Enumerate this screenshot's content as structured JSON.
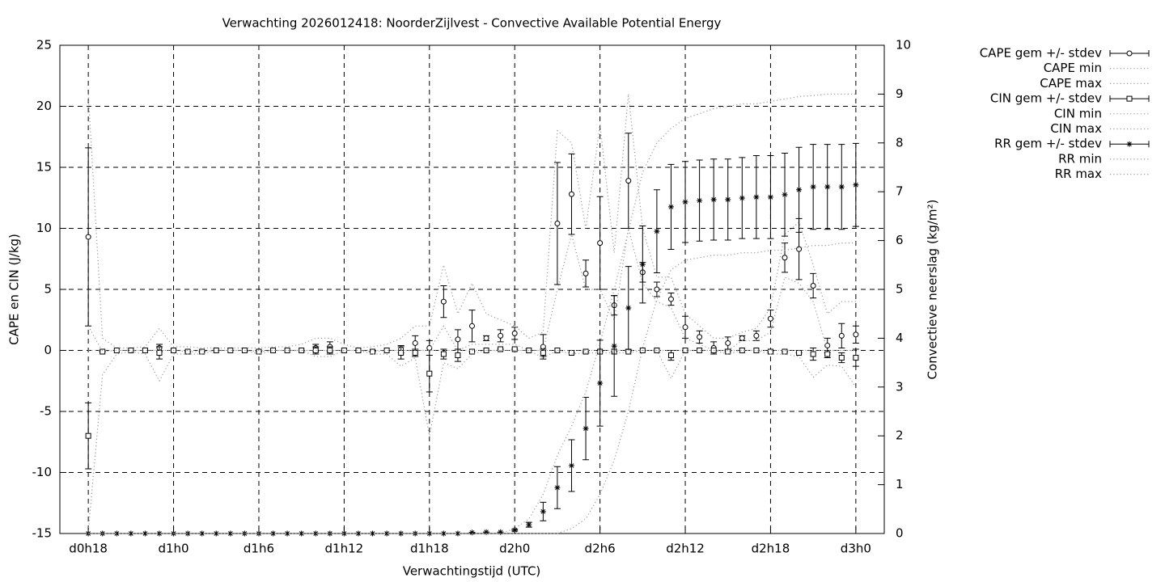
{
  "chart_data": {
    "type": "errorbar",
    "title": "Verwachting 2026012418: NoorderZijlvest - Convective Available Potential Energy",
    "x_label": "Verwachtingstijd (UTC)",
    "y_label": "CAPE en CIN (J/kg)",
    "y2_label": "Convectieve neerslag (kg/m²)",
    "x": [
      18,
      19,
      20,
      21,
      22,
      23,
      24,
      25,
      26,
      27,
      28,
      29,
      30,
      31,
      32,
      33,
      34,
      35,
      36,
      37,
      38,
      39,
      40,
      41,
      42,
      43,
      44,
      45,
      46,
      47,
      48,
      49,
      50,
      51,
      52,
      53,
      54,
      55,
      56,
      57,
      58,
      59,
      60,
      61,
      62,
      63,
      64,
      65,
      66,
      67,
      68,
      69,
      70,
      71,
      72
    ],
    "xlim": [
      16,
      74
    ],
    "xticks": [
      {
        "value": 18,
        "label": "d0h18"
      },
      {
        "value": 24,
        "label": "d1h0"
      },
      {
        "value": 30,
        "label": "d1h6"
      },
      {
        "value": 36,
        "label": "d1h12"
      },
      {
        "value": 42,
        "label": "d1h18"
      },
      {
        "value": 48,
        "label": "d2h0"
      },
      {
        "value": 54,
        "label": "d2h6"
      },
      {
        "value": 60,
        "label": "d2h12"
      },
      {
        "value": 66,
        "label": "d2h18"
      },
      {
        "value": 72,
        "label": "d3h0"
      }
    ],
    "ylim": [
      -15,
      25
    ],
    "yticks": [
      -15,
      -10,
      -5,
      0,
      5,
      10,
      15,
      20,
      25
    ],
    "y2lim": [
      0,
      10
    ],
    "y2ticks": [
      0,
      1,
      2,
      3,
      4,
      5,
      6,
      7,
      8,
      9,
      10
    ],
    "grid": true,
    "legend": "outside right",
    "series": [
      {
        "name": "CAPE gem +/- stdev",
        "color": "#000000",
        "style": "errorbars",
        "marker": "circle",
        "values": [
          9.3,
          -0.1,
          0,
          0,
          0,
          0.2,
          0,
          -0.1,
          -0.1,
          0,
          0,
          0,
          -0.1,
          0,
          0,
          0,
          0.2,
          0.3,
          0,
          0,
          -0.1,
          0,
          0.1,
          0.6,
          0.2,
          4.0,
          0.9,
          2.0,
          1.0,
          1.2,
          1.4,
          0,
          0.3,
          10.4,
          12.8,
          6.3,
          8.8,
          3.7,
          13.9,
          6.4,
          5.0,
          4.2,
          1.9,
          1.1,
          0.2,
          0.6,
          1.0,
          1.2,
          2.6,
          7.6,
          8.3,
          5.3,
          0.4,
          1.2,
          1.3
        ],
        "errors": [
          7.3,
          0,
          0,
          0,
          0,
          0.3,
          0,
          0,
          0,
          0,
          0,
          0,
          0,
          0,
          0,
          0,
          0.3,
          0.4,
          0,
          0,
          0,
          0,
          0.3,
          0.6,
          0.6,
          1.3,
          0.8,
          1.3,
          0.2,
          0.5,
          0.5,
          0,
          1.0,
          5.0,
          3.3,
          1.1,
          3.8,
          0.8,
          3.9,
          0.8,
          0.6,
          0.5,
          0.9,
          0.5,
          0.5,
          0.5,
          0.2,
          0.4,
          0.7,
          1.2,
          2.5,
          1.0,
          0.6,
          1.0,
          0.7
        ]
      },
      {
        "name": "CAPE min",
        "color": "#999999",
        "style": "dotted",
        "values": [
          2.0,
          -0.1,
          0,
          0,
          0,
          0,
          0,
          -0.1,
          -0.1,
          0,
          0,
          0,
          -0.1,
          0,
          0,
          0,
          0,
          0,
          0,
          0,
          -0.1,
          0,
          0,
          0,
          0,
          2.0,
          0,
          0.5,
          0.5,
          0.5,
          0.5,
          0,
          0,
          5.0,
          9.5,
          5.0,
          5.0,
          2.5,
          10.0,
          5.5,
          4.0,
          3.5,
          1.0,
          0.5,
          0,
          0,
          0.8,
          0.8,
          1.5,
          6.0,
          5.5,
          4.0,
          0,
          0,
          0
        ]
      },
      {
        "name": "CAPE max",
        "color": "#999999",
        "style": "dotted",
        "values": [
          21,
          1.0,
          0.2,
          0.2,
          0.3,
          1.8,
          0.3,
          0.3,
          0.2,
          0.2,
          0.2,
          0.2,
          0.2,
          0.3,
          0.3,
          0.5,
          1.0,
          1.0,
          0.5,
          0.2,
          0.3,
          0.5,
          1.0,
          2.0,
          2.0,
          7.0,
          3.0,
          5.5,
          3.0,
          2.5,
          2.0,
          1.0,
          1.5,
          18,
          17,
          10,
          18.5,
          8,
          21,
          10,
          6,
          6,
          3,
          2,
          1,
          1,
          1.5,
          1.8,
          3.5,
          9.5,
          10.5,
          7,
          3,
          4,
          4
        ]
      },
      {
        "name": "CIN gem +/- stdev",
        "color": "#000000",
        "style": "errorbars",
        "marker": "square",
        "values": [
          -7.0,
          -0.1,
          0,
          0,
          0,
          -0.2,
          0,
          -0.1,
          -0.1,
          0,
          0,
          0,
          -0.1,
          0,
          0,
          0,
          0,
          0,
          0,
          0,
          -0.1,
          0,
          -0.2,
          -0.2,
          -1.9,
          -0.3,
          -0.4,
          -0.1,
          0,
          0.1,
          0.1,
          0,
          -0.2,
          0,
          -0.2,
          -0.1,
          -0.1,
          -0.1,
          -0.1,
          0,
          0,
          -0.4,
          0,
          0,
          0,
          -0.1,
          0,
          0,
          -0.1,
          -0.1,
          -0.2,
          -0.3,
          -0.3,
          -0.6,
          -0.6
        ],
        "errors": [
          2.7,
          0,
          0,
          0,
          0,
          0.5,
          0,
          0,
          0,
          0,
          0,
          0,
          0,
          0,
          0,
          0,
          0.3,
          0.3,
          0,
          0,
          0,
          0,
          0.5,
          0.3,
          1.5,
          0.4,
          0.5,
          0,
          0,
          0,
          0,
          0,
          0.3,
          0,
          0,
          0,
          0,
          0,
          0,
          0,
          0,
          0.4,
          0,
          0,
          0,
          0,
          0,
          0,
          0,
          0,
          0,
          0.5,
          0.3,
          0.4,
          0.7
        ]
      },
      {
        "name": "CIN min",
        "color": "#999999",
        "style": "dotted",
        "values": [
          -14.8,
          -2.0,
          -0.3,
          -0.1,
          -0.3,
          -2.5,
          -0.3,
          -0.3,
          -0.3,
          0,
          0,
          0,
          -0.3,
          0,
          0,
          0,
          -0.5,
          -0.5,
          0,
          0,
          -0.3,
          -0.3,
          -1.3,
          -0.6,
          -7.0,
          -1.0,
          -1.5,
          -0.3,
          0,
          0,
          0,
          0,
          -0.6,
          0,
          -0.3,
          -0.2,
          -0.2,
          -0.2,
          -0.2,
          0,
          0,
          -2.3,
          0,
          0,
          0,
          -0.3,
          0,
          0,
          -0.3,
          -0.3,
          -0.5,
          -2.2,
          -1.2,
          -1.3,
          -3.0
        ]
      },
      {
        "name": "CIN max",
        "color": "#999999",
        "style": "dotted",
        "values": [
          0,
          0,
          0,
          0,
          0,
          0,
          0,
          0,
          0,
          0,
          0,
          0,
          0,
          0,
          0,
          0,
          0,
          0,
          0,
          0,
          0,
          0,
          0,
          0,
          0,
          0,
          0,
          0,
          0,
          0,
          0,
          0,
          0,
          0,
          0,
          0,
          0,
          0,
          0,
          0,
          0,
          0,
          0,
          0,
          0,
          0,
          0,
          0,
          0,
          0,
          0,
          0,
          0,
          0,
          0
        ]
      },
      {
        "name": "RR gem +/- stdev",
        "color": "#000000",
        "style": "errorbars",
        "marker": "star",
        "axis": "y2",
        "values": [
          0,
          0,
          0,
          0,
          0,
          0,
          0,
          0,
          0,
          0,
          0,
          0,
          0,
          0,
          0,
          0,
          0,
          0,
          0,
          0,
          0,
          0,
          0,
          0,
          0,
          0,
          0,
          0.02,
          0.03,
          0.03,
          0.07,
          0.18,
          0.45,
          0.94,
          1.39,
          2.15,
          3.08,
          3.84,
          4.62,
          5.51,
          6.19,
          6.69,
          6.79,
          6.82,
          6.84,
          6.84,
          6.87,
          6.89,
          6.89,
          6.94,
          7.04,
          7.1,
          7.1,
          7.1,
          7.14
        ],
        "errors": [
          0,
          0,
          0,
          0,
          0,
          0,
          0,
          0,
          0,
          0,
          0,
          0,
          0,
          0,
          0,
          0,
          0,
          0,
          0,
          0,
          0,
          0,
          0,
          0,
          0,
          0,
          0,
          0,
          0,
          0,
          0.02,
          0.05,
          0.19,
          0.43,
          0.53,
          0.64,
          0.88,
          1.03,
          0.85,
          0.79,
          0.85,
          0.87,
          0.83,
          0.83,
          0.83,
          0.83,
          0.83,
          0.85,
          0.85,
          0.85,
          0.87,
          0.87,
          0.87,
          0.87,
          0.85
        ]
      },
      {
        "name": "RR min",
        "color": "#999999",
        "style": "dotted",
        "axis": "y2",
        "values": [
          0,
          0,
          0,
          0,
          0,
          0,
          0,
          0,
          0,
          0,
          0,
          0,
          0,
          0,
          0,
          0,
          0,
          0,
          0,
          0,
          0,
          0,
          0,
          0,
          0,
          0,
          0,
          0,
          0,
          0,
          0,
          0,
          0,
          0,
          0.1,
          0.3,
          0.8,
          1.5,
          2.5,
          3.8,
          4.8,
          5.4,
          5.6,
          5.65,
          5.7,
          5.7,
          5.75,
          5.75,
          5.8,
          5.8,
          5.85,
          5.9,
          5.9,
          5.95,
          5.95
        ]
      },
      {
        "name": "RR max",
        "color": "#999999",
        "style": "dotted",
        "axis": "y2",
        "values": [
          0,
          0,
          0,
          0,
          0,
          0,
          0,
          0,
          0,
          0,
          0,
          0,
          0,
          0,
          0,
          0,
          0,
          0,
          0,
          0,
          0,
          0,
          0,
          0,
          0,
          0,
          0,
          0,
          0,
          0,
          0.1,
          0.3,
          0.8,
          1.6,
          2.2,
          2.9,
          3.9,
          5.0,
          6.2,
          7.4,
          8.0,
          8.3,
          8.5,
          8.6,
          8.7,
          8.75,
          8.8,
          8.8,
          8.85,
          8.9,
          8.95,
          8.97,
          9.0,
          9.0,
          9.0
        ]
      }
    ]
  }
}
